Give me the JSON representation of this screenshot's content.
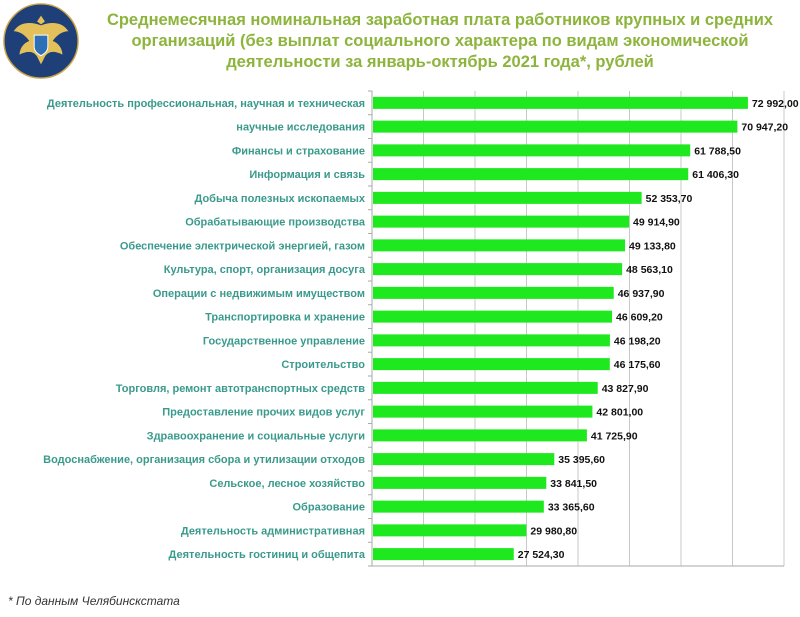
{
  "header": {
    "title": "Среднемесячная номинальная заработная плата работников крупных и средних организаций (без выплат социального характера по видам экономической деятельности за январь-октябрь 2021 года*, рублей",
    "logo_icon": "double-headed-eagle-emblem"
  },
  "footnote": "* По данным Челябинскстата",
  "chart_data": {
    "type": "bar",
    "orientation": "horizontal",
    "title": "Среднемесячная номинальная заработная плата работников крупных и средних организаций (без выплат социального характера по видам экономической деятельности за январь-октябрь 2021 года*, рублей",
    "xlabel": "",
    "ylabel": "",
    "xlim": [
      0,
      80000
    ],
    "grid_step": 10000,
    "grid": true,
    "bar_color": "#1ee81e",
    "categories": [
      "Деятельность профессиональная, научная и техническая",
      "научные исследования",
      "Финансы и страхование",
      "Информация и связь",
      "Добыча полезных ископаемых",
      "Обрабатывающие производства",
      "Обеспечение электрической энергией, газом",
      "Культура, спорт, организация досуга",
      "Операции с недвижимым имуществом",
      "Транспортировка и хранение",
      "Государственное управление",
      "Строительство",
      "Торговля, ремонт автотранспортных средств",
      "Предоставление прочих видов услуг",
      "Здравоохранение и социальные услуги",
      "Водоснабжение, организация сбора и утилизации отходов",
      "Сельское, лесное хозяйство",
      "Образование",
      "Деятельность административная",
      "Деятельность гостиниц и общепита"
    ],
    "values": [
      72992.0,
      70947.2,
      61788.5,
      61406.3,
      52353.7,
      49914.9,
      49133.8,
      48563.1,
      46937.9,
      46609.2,
      46198.2,
      46175.6,
      43827.9,
      42801.0,
      41725.9,
      35395.6,
      33841.5,
      33365.6,
      29980.8,
      27524.3
    ],
    "value_labels": [
      "72 992,00",
      "70 947,20",
      "61 788,50",
      "61 406,30",
      "52 353,70",
      "49 914,90",
      "49 133,80",
      "48 563,10",
      "46 937,90",
      "46 609,20",
      "46 198,20",
      "46 175,60",
      "43 827,90",
      "42 801,00",
      "41 725,90",
      "35 395,60",
      "33 841,50",
      "33 365,60",
      "29 980,80",
      "27 524,30"
    ]
  }
}
